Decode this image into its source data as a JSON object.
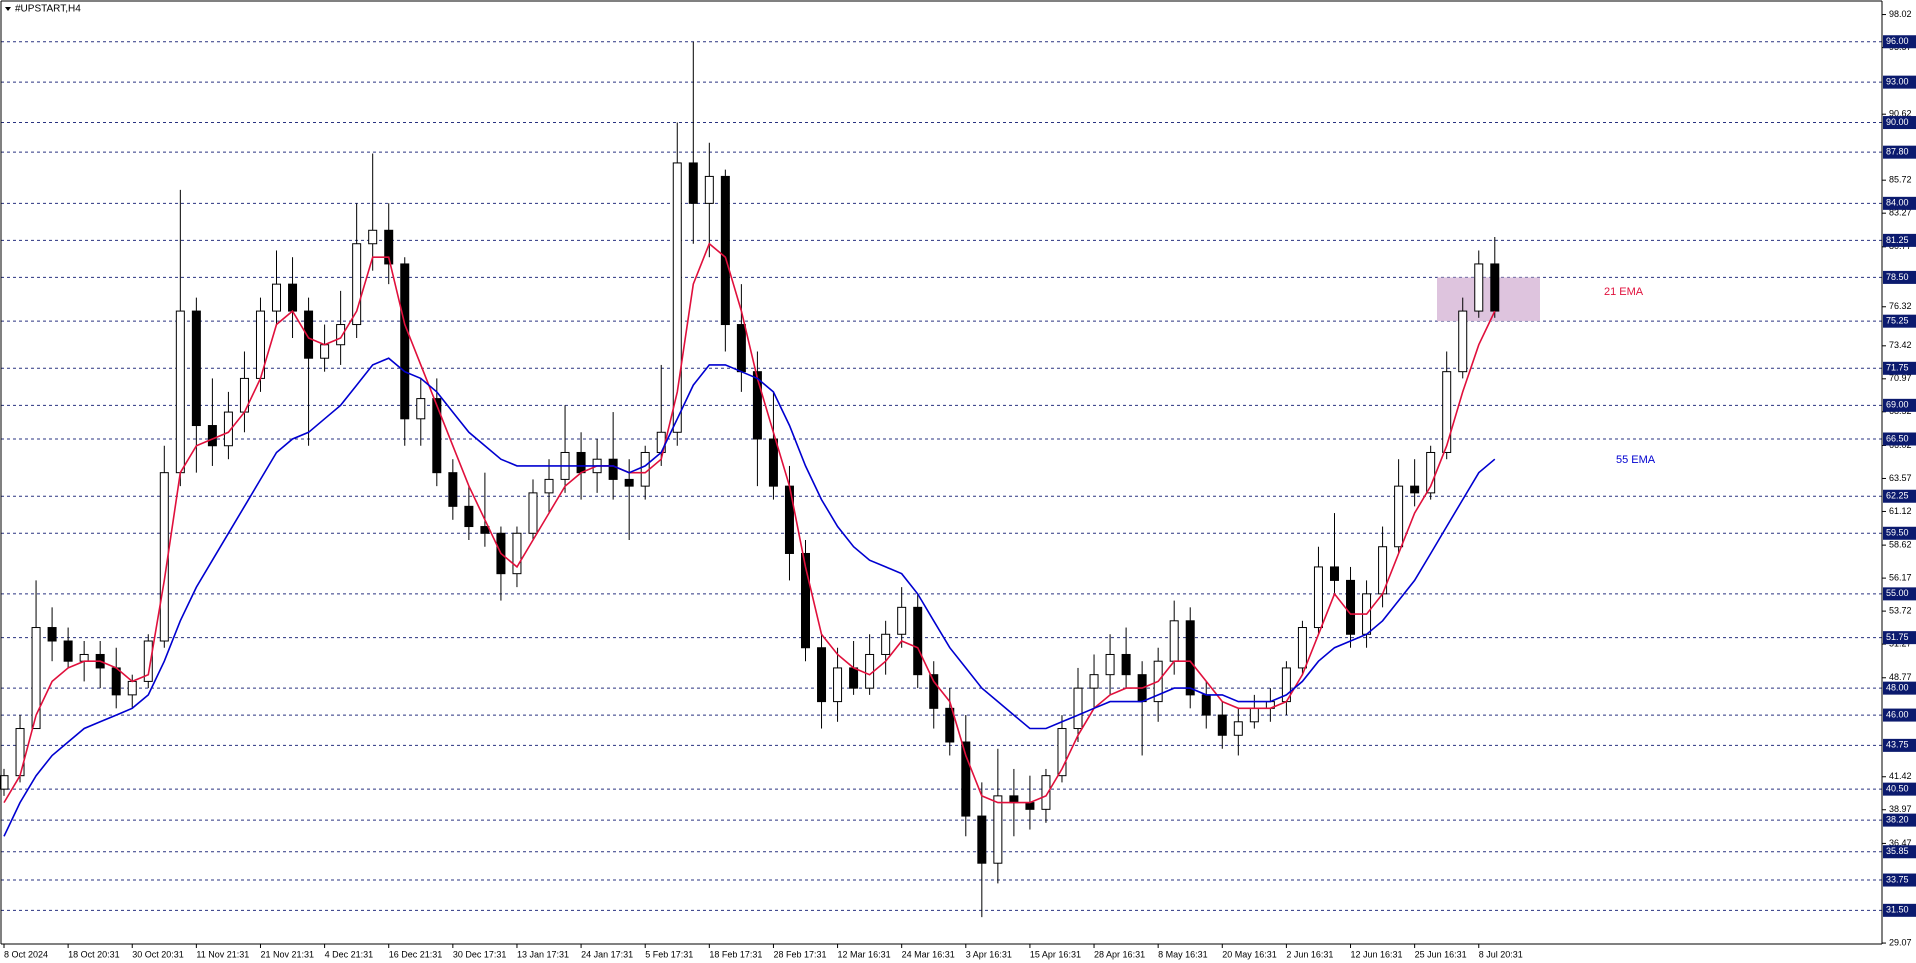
{
  "chart_data": {
    "type": "candlestick",
    "title": "#UPSTART,H4",
    "categories": [
      "8 Oct 2024",
      null,
      null,
      null,
      "18 Oct 20:31",
      null,
      null,
      null,
      "30 Oct 20:31",
      null,
      null,
      null,
      "11 Nov 21:31",
      null,
      null,
      null,
      "21 Nov 21:31",
      null,
      null,
      null,
      "4 Dec 21:31",
      null,
      null,
      null,
      "16 Dec 21:31",
      null,
      null,
      null,
      "30 Dec 17:31",
      null,
      null,
      null,
      "13 Jan 17:31",
      null,
      null,
      null,
      "24 Jan 17:31",
      null,
      null,
      null,
      "5 Feb 17:31",
      null,
      null,
      null,
      "18 Feb 17:31",
      null,
      null,
      null,
      "28 Feb 17:31",
      null,
      null,
      null,
      "12 Mar 16:31",
      null,
      null,
      null,
      "24 Mar 16:31",
      null,
      null,
      null,
      "3 Apr 16:31",
      null,
      null,
      null,
      "15 Apr 16:31",
      null,
      null,
      null,
      "28 Apr 16:31",
      null,
      null,
      null,
      "8 May 16:31",
      null,
      null,
      null,
      "20 May 16:31",
      null,
      null,
      null,
      "2 Jun 16:31",
      null,
      null,
      null,
      "12 Jun 16:31",
      null,
      null,
      null,
      "25 Jun 16:31",
      null,
      null,
      null,
      "8 Jul 20:31",
      null
    ],
    "open": [
      40.5,
      41.5,
      45,
      52.5,
      51.5,
      50,
      50.5,
      49.5,
      47.5,
      48.5,
      51.5,
      64,
      76,
      67.5,
      66,
      68.5,
      71,
      76,
      78,
      76,
      72.5,
      73.5,
      75,
      81,
      82,
      79.5,
      68,
      69.5,
      64,
      61.5,
      60,
      59.5,
      56.5,
      59.5,
      62.5,
      63.5,
      65.5,
      64,
      65,
      63.5,
      63,
      65.5,
      67,
      87,
      84,
      86,
      75,
      71.5,
      66.5,
      63,
      58,
      51,
      47,
      49.5,
      48,
      50.5,
      52,
      54,
      49,
      46.5,
      44,
      38.5,
      35,
      40,
      39.5,
      39,
      41.5,
      45,
      48,
      49,
      50.5,
      49,
      47,
      50,
      53,
      47.5,
      46,
      44.5,
      45.5,
      46.5,
      47,
      49.5,
      52.5,
      57,
      56,
      52,
      55,
      58.5,
      63,
      62.5,
      65.5,
      71.5,
      76,
      79.5
    ],
    "high": [
      42,
      46,
      56,
      54,
      52.5,
      51.5,
      51.5,
      51,
      49,
      52,
      66,
      85,
      77,
      71,
      70,
      73,
      77,
      80.5,
      80,
      77,
      75,
      77.5,
      84,
      87.7,
      84,
      80,
      71,
      71,
      65,
      63,
      64,
      60,
      60,
      63.5,
      65,
      69,
      67,
      66.5,
      68.5,
      65,
      66,
      72,
      90,
      96,
      88.5,
      86.5,
      78,
      73,
      70,
      64.5,
      59,
      52,
      51,
      51.5,
      52,
      53,
      55.5,
      55,
      50,
      48,
      46,
      41,
      43.5,
      42,
      41.5,
      42,
      46,
      49.5,
      50.5,
      52,
      52.5,
      50,
      51,
      54.5,
      54,
      48.5,
      47,
      46.5,
      47.5,
      48,
      50,
      53,
      58.5,
      61,
      57,
      56,
      60,
      65,
      65,
      66,
      73,
      77,
      80.5,
      81.5
    ],
    "low": [
      40,
      41,
      45,
      50,
      49.5,
      48.5,
      48,
      46.5,
      46.5,
      48,
      51,
      63,
      64,
      64.5,
      65,
      67,
      70,
      75,
      74,
      66,
      71.5,
      72,
      74,
      79,
      78,
      66,
      66,
      63,
      60.5,
      59,
      58.5,
      54.5,
      55.5,
      59,
      61,
      62.5,
      62,
      62.5,
      62,
      59,
      62,
      64.5,
      66,
      81,
      80,
      73,
      70,
      63,
      62,
      56,
      50,
      45,
      45.5,
      47.5,
      47.5,
      49,
      51,
      48,
      45,
      43,
      37,
      31,
      33.5,
      37,
      37.5,
      38,
      41,
      44,
      46.5,
      47.5,
      48,
      43,
      45.5,
      49,
      46.5,
      45,
      43.5,
      43,
      45,
      45.5,
      46,
      49,
      52,
      55,
      51,
      51,
      54,
      58,
      61.5,
      62,
      65,
      71,
      75.5,
      75.5
    ],
    "close": [
      41.5,
      45,
      52.5,
      51.5,
      50,
      50.5,
      49.5,
      47.5,
      48.5,
      51.5,
      64,
      76,
      67.5,
      66,
      68.5,
      71,
      76,
      78,
      76,
      72.5,
      73.5,
      75,
      81,
      82,
      79.5,
      68,
      69.5,
      64,
      61.5,
      60,
      59.5,
      56.5,
      59.5,
      62.5,
      63.5,
      65.5,
      64,
      65,
      63.5,
      63,
      65.5,
      67,
      87,
      84,
      86,
      75,
      71.5,
      66.5,
      63,
      58,
      51,
      47,
      49.5,
      48,
      50.5,
      52,
      54,
      49,
      46.5,
      44,
      38.5,
      35,
      40,
      39.5,
      39,
      41.5,
      45,
      48,
      49,
      50.5,
      49,
      47,
      50,
      53,
      47.5,
      46,
      44.5,
      45.5,
      46.5,
      47,
      49.5,
      52.5,
      57,
      56,
      52,
      55,
      58.5,
      63,
      62.5,
      65.5,
      71.5,
      76,
      79.5,
      76
    ],
    "series": [
      {
        "name": "21 EMA",
        "color": "#e0103c",
        "values": [
          39.5,
          41.5,
          46,
          48.5,
          49.5,
          50,
          50,
          49.5,
          48.5,
          49,
          56,
          64,
          66,
          66.5,
          67,
          68.5,
          71,
          75,
          76,
          74,
          73.5,
          74,
          76,
          80,
          80,
          75,
          72,
          69,
          66,
          63,
          60.5,
          58,
          57,
          59,
          61,
          63,
          64,
          64.5,
          64.5,
          64,
          64,
          65,
          70,
          78,
          81,
          80,
          76,
          71,
          67,
          63,
          57,
          52,
          50.5,
          49.5,
          49,
          50,
          51.5,
          51,
          48.5,
          47,
          43,
          40,
          39.5,
          39.5,
          39.5,
          40,
          42,
          44.5,
          46.5,
          47.5,
          48,
          48,
          48.5,
          50,
          50,
          48.5,
          47,
          46.5,
          46.5,
          46.5,
          47,
          49,
          52,
          55,
          53.5,
          53.5,
          55,
          58,
          61,
          63,
          66,
          70,
          73.5,
          76
        ]
      },
      {
        "name": "55 EMA",
        "color": "#0000d0",
        "values": [
          37,
          39.5,
          41.5,
          43,
          44,
          45,
          45.5,
          46,
          46.5,
          47.5,
          50,
          53,
          55.5,
          57.5,
          59.5,
          61.5,
          63.5,
          65.5,
          66.5,
          67,
          68,
          69,
          70.5,
          72,
          72.5,
          71.5,
          71,
          70,
          68.5,
          67,
          66,
          65,
          64.5,
          64.5,
          64.5,
          64.5,
          64.5,
          64.5,
          64.5,
          64,
          64.5,
          65.5,
          68,
          70.5,
          72,
          72,
          71.5,
          71,
          70,
          67.5,
          64.5,
          62,
          60,
          58.5,
          57.5,
          57,
          56.5,
          55,
          53,
          51,
          49.5,
          48,
          47,
          46,
          45,
          45,
          45.5,
          46,
          46.5,
          47,
          47,
          47,
          47.5,
          48,
          48,
          47.5,
          47.5,
          47,
          47,
          47,
          47.5,
          48.5,
          50,
          51,
          51.5,
          52,
          53,
          54.5,
          56,
          58,
          60,
          62,
          64,
          65
        ]
      }
    ],
    "up_color": "#ffffff",
    "down_color": "#000000",
    "ylim": [
      29.0,
      99.1
    ],
    "yticks": [
      98.02,
      95.57,
      90.62,
      85.72,
      83.27,
      80.77,
      76.32,
      73.42,
      70.97,
      68.52,
      66.02,
      63.57,
      61.12,
      58.62,
      56.17,
      53.72,
      51.27,
      48.77,
      41.42,
      38.97,
      36.47,
      29.07
    ],
    "levels": [
      {
        "value": 96,
        "label": "96.00"
      },
      {
        "value": 93,
        "label": "93.00"
      },
      {
        "value": 90,
        "label": "90.00"
      },
      {
        "value": 87.8,
        "label": "87.80"
      },
      {
        "value": 84,
        "label": "84.00"
      },
      {
        "value": 81.25,
        "label": "81.25"
      },
      {
        "value": 78.5,
        "label": "78.50"
      },
      {
        "value": 75.25,
        "label": "75.25"
      },
      {
        "value": 71.75,
        "label": "71.75"
      },
      {
        "value": 69,
        "label": "69.00"
      },
      {
        "value": 66.5,
        "label": "66.50"
      },
      {
        "value": 62.25,
        "label": "62.25"
      },
      {
        "value": 59.5,
        "label": "59.50"
      },
      {
        "value": 55,
        "label": "55.00"
      },
      {
        "value": 51.75,
        "label": "51.75"
      },
      {
        "value": 48,
        "label": "48.00"
      },
      {
        "value": 46,
        "label": "46.00"
      },
      {
        "value": 43.75,
        "label": "43.75"
      },
      {
        "value": 40.5,
        "label": "40.50"
      },
      {
        "value": 38.2,
        "label": "38.20"
      },
      {
        "value": 35.85,
        "label": "35.85"
      },
      {
        "value": 33.75,
        "label": "33.75"
      },
      {
        "value": 31.5,
        "label": "31.50"
      }
    ],
    "zone": {
      "low": 75.25,
      "high": 78.5,
      "color": "#d8bad8"
    }
  }
}
